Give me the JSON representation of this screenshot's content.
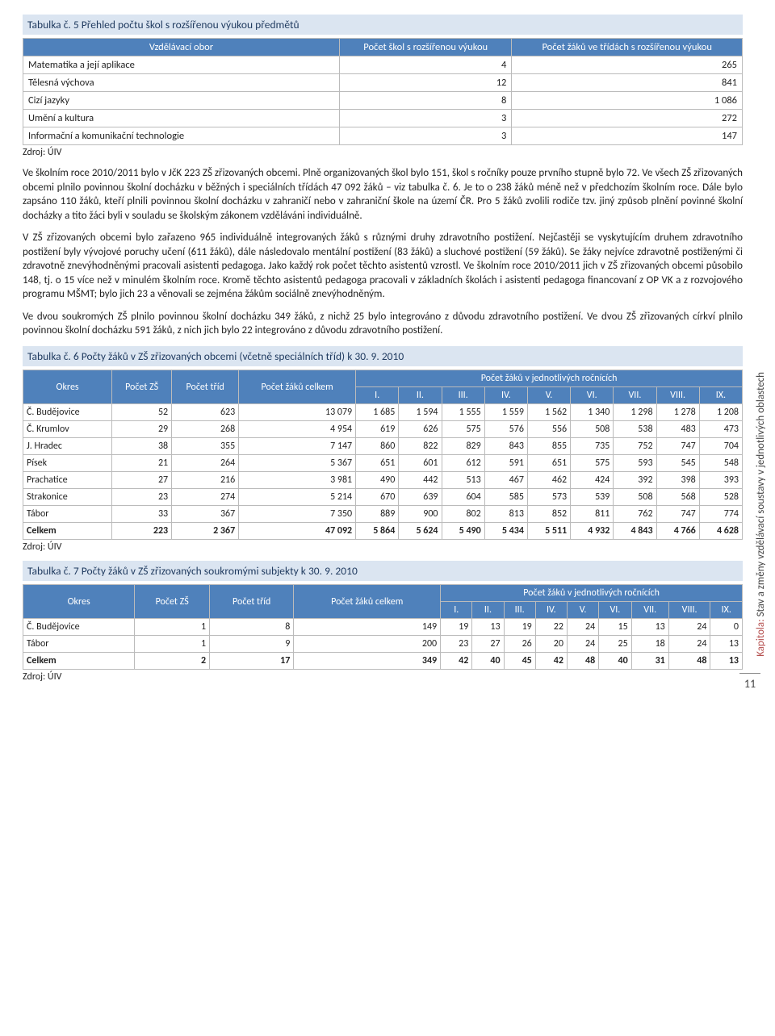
{
  "colors": {
    "header_bg": "#4f81bb",
    "header_fg": "#ffffff",
    "caption_bg": "#dbe5f1",
    "caption_fg": "#1f3a5f",
    "border": "#bbbbbb",
    "accent": "#b5504f"
  },
  "table5": {
    "caption": "Tabulka č. 5 Přehled počtu škol s rozšířenou výukou předmětů",
    "columns": [
      "Vzdělávací obor",
      "Počet škol s rozšířenou výukou",
      "Počet žáků ve třídách s rozšířenou výukou"
    ],
    "rows": [
      [
        "Matematika a její aplikace",
        "4",
        "265"
      ],
      [
        "Tělesná výchova",
        "12",
        "841"
      ],
      [
        "Cizí jazyky",
        "8",
        "1 086"
      ],
      [
        "Umění a kultura",
        "3",
        "272"
      ],
      [
        "Informační a komunikační technologie",
        "3",
        "147"
      ]
    ],
    "source": "Zdroj: ÚIV"
  },
  "para1": "Ve školním roce 2010/2011 bylo v JčK 223 ZŠ zřizovaných obcemi. Plně organizovaných škol bylo 151, škol s ročníky pouze prvního stupně bylo 72. Ve všech ZŠ zřizovaných obcemi plnilo povinnou školní docházku v běžných i speciálních třídách 47 092 žáků – viz tabulka č. 6. Je to o 238 žáků méně než v předchozím školním roce. Dále bylo zapsáno 110 žáků, kteří plnili povinnou školní docházku v zahraničí nebo v zahraniční škole na území ČR. Pro 5 žáků zvolili rodiče tzv. jiný způsob plnění povinné školní docházky a tito žáci byli v souladu se školským zákonem vzděláváni individuálně.",
  "para2": "V ZŠ zřizovaných obcemi bylo zařazeno 965 individuálně integrovaných žáků s různými druhy zdravotního postižení. Nejčastěji se vyskytujícím druhem zdravotního postižení byly vývojové poruchy učení (611 žáků), dále následovalo mentální postižení (83 žáků) a sluchové postižení (59 žáků). Se žáky nejvíce zdravotně postiženými či zdravotně znevýhodněnými pracovali asistenti pedagoga. Jako každý rok počet těchto asistentů vzrostl. Ve školním roce 2010/2011 jich v ZŠ zřizovaných obcemi působilo 148, tj. o 15 více než v minulém školním roce. Kromě těchto asistentů pedagoga pracovali v základních školách i asistenti pedagoga financovaní z OP VK a z rozvojového programu MŠMT; bylo jich 23 a věnovali se zejména žákům sociálně znevýhodněným.",
  "para3": "Ve dvou soukromých ZŠ plnilo povinnou školní docházku 349 žáků, z nichž 25 bylo integrováno z důvodu zdravotního postižení. Ve dvou ZŠ zřizovaných církví plnilo povinnou školní docházku 591 žáků, z nich jich bylo 22 integrováno z důvodu zdravotního postižení.",
  "table6": {
    "caption": "Tabulka č. 6 Počty žáků v ZŠ zřizovaných obcemi (včetně speciálních tříd) k 30. 9. 2010",
    "header1": [
      "Okres",
      "Počet ZŠ",
      "Počet tříd",
      "Počet žáků celkem",
      "Počet žáků v jednotlivých ročnících"
    ],
    "grades": [
      "I.",
      "II.",
      "III.",
      "IV.",
      "V.",
      "VI.",
      "VII.",
      "VIII.",
      "IX."
    ],
    "rows": [
      [
        "Č. Budějovice",
        "52",
        "623",
        "13 079",
        "1 685",
        "1 594",
        "1 555",
        "1 559",
        "1 562",
        "1 340",
        "1 298",
        "1 278",
        "1 208"
      ],
      [
        "Č. Krumlov",
        "29",
        "268",
        "4 954",
        "619",
        "626",
        "575",
        "576",
        "556",
        "508",
        "538",
        "483",
        "473"
      ],
      [
        "J. Hradec",
        "38",
        "355",
        "7 147",
        "860",
        "822",
        "829",
        "843",
        "855",
        "735",
        "752",
        "747",
        "704"
      ],
      [
        "Písek",
        "21",
        "264",
        "5 367",
        "651",
        "601",
        "612",
        "591",
        "651",
        "575",
        "593",
        "545",
        "548"
      ],
      [
        "Prachatice",
        "27",
        "216",
        "3 981",
        "490",
        "442",
        "513",
        "467",
        "462",
        "424",
        "392",
        "398",
        "393"
      ],
      [
        "Strakonice",
        "23",
        "274",
        "5 214",
        "670",
        "639",
        "604",
        "585",
        "573",
        "539",
        "508",
        "568",
        "528"
      ],
      [
        "Tábor",
        "33",
        "367",
        "7 350",
        "889",
        "900",
        "802",
        "813",
        "852",
        "811",
        "762",
        "747",
        "774"
      ]
    ],
    "total": [
      "Celkem",
      "223",
      "2 367",
      "47 092",
      "5 864",
      "5 624",
      "5 490",
      "5 434",
      "5 511",
      "4 932",
      "4 843",
      "4 766",
      "4 628"
    ],
    "source": "Zdroj: ÚIV"
  },
  "table7": {
    "caption": "Tabulka č. 7 Počty žáků v ZŠ zřizovaných soukromými subjekty k 30. 9. 2010",
    "header1": [
      "Okres",
      "Počet ZŠ",
      "Počet tříd",
      "Počet žáků celkem",
      "Počet žáků v jednotlivých ročnících"
    ],
    "grades": [
      "I.",
      "II.",
      "III.",
      "IV.",
      "V.",
      "VI.",
      "VII.",
      "VIII.",
      "IX."
    ],
    "rows": [
      [
        "Č. Budějovice",
        "1",
        "8",
        "149",
        "19",
        "13",
        "19",
        "22",
        "24",
        "15",
        "13",
        "24",
        "0"
      ],
      [
        "Tábor",
        "1",
        "9",
        "200",
        "23",
        "27",
        "26",
        "20",
        "24",
        "25",
        "18",
        "24",
        "13"
      ]
    ],
    "total": [
      "Celkem",
      "2",
      "17",
      "349",
      "42",
      "40",
      "45",
      "42",
      "48",
      "40",
      "31",
      "48",
      "13"
    ],
    "source": "Zdroj: ÚIV"
  },
  "sidebar": {
    "chapter_label": "Kapitola:",
    "chapter_title": "Stav a změny vzdělávací soustavy v jednotlivých oblastech"
  },
  "page_number": "11"
}
